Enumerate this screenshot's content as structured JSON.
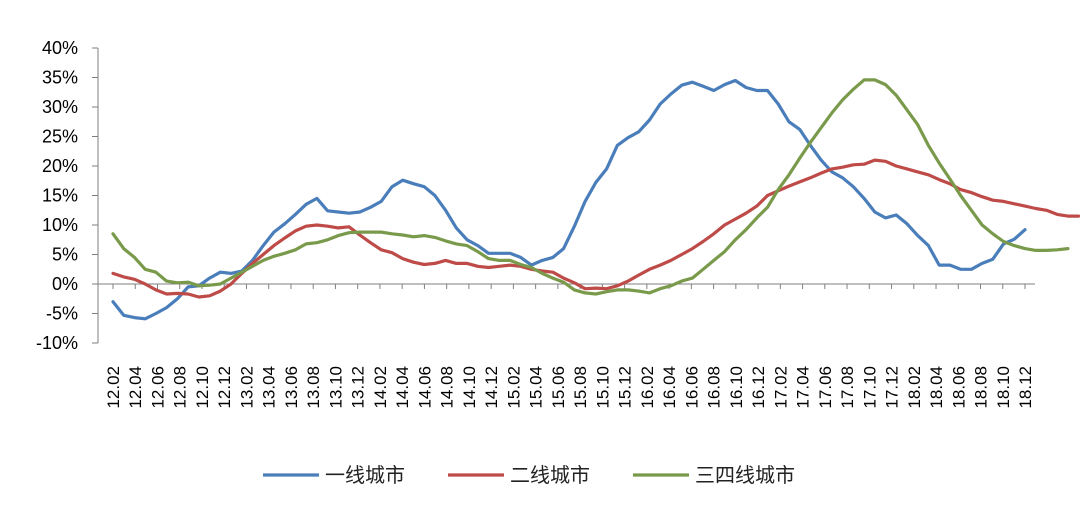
{
  "chart_data": {
    "type": "line",
    "title": "",
    "xlabel": "",
    "ylabel": "",
    "ylim": [
      -0.1,
      0.4
    ],
    "yticks": [
      "40%",
      "35%",
      "30%",
      "25%",
      "20%",
      "15%",
      "10%",
      "5%",
      "0%",
      "-5%",
      "-10%"
    ],
    "ytick_values": [
      0.4,
      0.35,
      0.3,
      0.25,
      0.2,
      0.15,
      0.1,
      0.05,
      0.0,
      -0.05,
      -0.1
    ],
    "xticks": [
      "12.02",
      "12.04",
      "12.06",
      "12.08",
      "12.10",
      "12.12",
      "13.02",
      "13.04",
      "13.06",
      "13.08",
      "13.10",
      "13.12",
      "14.02",
      "14.04",
      "14.06",
      "14.08",
      "14.10",
      "14.12",
      "15.02",
      "15.04",
      "15.06",
      "15.08",
      "15.10",
      "15.12",
      "16.02",
      "16.04",
      "16.06",
      "16.08",
      "16.10",
      "16.12",
      "17.02",
      "17.04",
      "17.06",
      "17.08",
      "17.10",
      "17.12",
      "18.02",
      "18.04",
      "18.06",
      "18.08",
      "18.10",
      "18.12"
    ],
    "x_unit": "month",
    "x_start": "12.02",
    "grid": false,
    "legend_position": "bottom",
    "series": [
      {
        "name": "一线城市",
        "color": "#4a7ebb",
        "values": [
          -0.03,
          -0.053,
          -0.057,
          -0.059,
          -0.05,
          -0.04,
          -0.025,
          -0.005,
          -0.003,
          0.01,
          0.02,
          0.018,
          0.022,
          0.04,
          0.065,
          0.088,
          0.102,
          0.118,
          0.135,
          0.145,
          0.124,
          0.122,
          0.12,
          0.122,
          0.13,
          0.14,
          0.165,
          0.176,
          0.17,
          0.165,
          0.15,
          0.125,
          0.095,
          0.075,
          0.065,
          0.052,
          0.052,
          0.052,
          0.045,
          0.032,
          0.04,
          0.045,
          0.06,
          0.098,
          0.14,
          0.172,
          0.195,
          0.235,
          0.248,
          0.258,
          0.278,
          0.305,
          0.322,
          0.337,
          0.342,
          0.335,
          0.328,
          0.338,
          0.345,
          0.333,
          0.328,
          0.328,
          0.305,
          0.275,
          0.262,
          0.235,
          0.21,
          0.19,
          0.18,
          0.165,
          0.145,
          0.122,
          0.112,
          0.117,
          0.102,
          0.082,
          0.065,
          0.032,
          0.032,
          0.025,
          0.025,
          0.035,
          0.042,
          0.068,
          0.076,
          0.092
        ]
      },
      {
        "name": "二线城市",
        "color": "#be4b48",
        "values": [
          0.018,
          0.012,
          0.008,
          0.0,
          -0.01,
          -0.017,
          -0.016,
          -0.017,
          -0.022,
          -0.02,
          -0.012,
          0.0,
          0.018,
          0.035,
          0.05,
          0.065,
          0.078,
          0.09,
          0.098,
          0.1,
          0.098,
          0.095,
          0.097,
          0.083,
          0.07,
          0.058,
          0.053,
          0.043,
          0.037,
          0.033,
          0.035,
          0.04,
          0.035,
          0.035,
          0.03,
          0.028,
          0.03,
          0.032,
          0.03,
          0.025,
          0.022,
          0.02,
          0.01,
          0.002,
          -0.008,
          -0.007,
          -0.008,
          -0.003,
          0.005,
          0.015,
          0.025,
          0.032,
          0.04,
          0.05,
          0.06,
          0.072,
          0.085,
          0.1,
          0.11,
          0.12,
          0.132,
          0.15,
          0.158,
          0.166,
          0.173,
          0.18,
          0.188,
          0.195,
          0.198,
          0.202,
          0.203,
          0.21,
          0.208,
          0.2,
          0.195,
          0.19,
          0.185,
          0.177,
          0.17,
          0.16,
          0.155,
          0.148,
          0.142,
          0.14,
          0.136,
          0.132,
          0.128,
          0.125,
          0.118,
          0.115,
          0.115
        ]
      },
      {
        "name": "三四线城市",
        "color": "#7a9a4b",
        "values": [
          0.085,
          0.06,
          0.045,
          0.025,
          0.02,
          0.005,
          0.002,
          0.003,
          -0.003,
          -0.002,
          0.0,
          0.01,
          0.02,
          0.03,
          0.04,
          0.047,
          0.052,
          0.058,
          0.068,
          0.07,
          0.075,
          0.082,
          0.087,
          0.088,
          0.088,
          0.088,
          0.085,
          0.083,
          0.08,
          0.082,
          0.079,
          0.073,
          0.068,
          0.065,
          0.055,
          0.043,
          0.04,
          0.04,
          0.033,
          0.028,
          0.018,
          0.01,
          0.003,
          -0.01,
          -0.015,
          -0.017,
          -0.013,
          -0.01,
          -0.01,
          -0.012,
          -0.015,
          -0.008,
          -0.003,
          0.005,
          0.01,
          0.025,
          0.04,
          0.055,
          0.075,
          0.092,
          0.112,
          0.13,
          0.16,
          0.185,
          0.213,
          0.24,
          0.265,
          0.29,
          0.312,
          0.33,
          0.346,
          0.346,
          0.338,
          0.32,
          0.295,
          0.27,
          0.235,
          0.205,
          0.178,
          0.15,
          0.125,
          0.1,
          0.085,
          0.072,
          0.065,
          0.06,
          0.057,
          0.057,
          0.058,
          0.06
        ]
      }
    ]
  }
}
